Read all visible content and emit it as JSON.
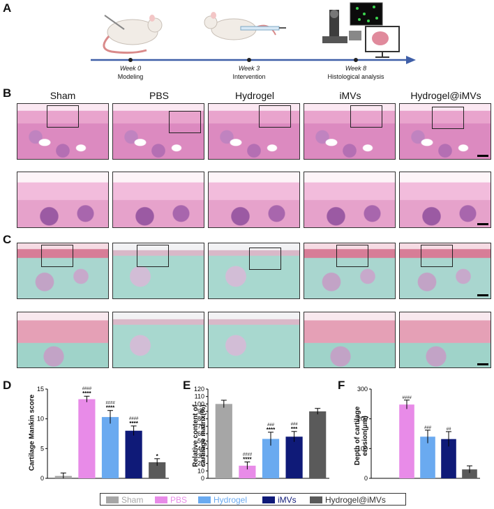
{
  "panels": {
    "a": "A",
    "b": "B",
    "c": "C",
    "d": "D",
    "e": "E",
    "f": "F"
  },
  "timeline": [
    {
      "week": "Week 0",
      "step": "Modeling"
    },
    {
      "week": "Week 3",
      "step": "Intervention"
    },
    {
      "week": "Week 8",
      "step": "Histological analysis"
    }
  ],
  "groups": [
    "Sham",
    "PBS",
    "Hydrogel",
    "iMVs",
    "Hydrogel@iMVs"
  ],
  "colors": {
    "sham": "#a6a6a6",
    "pbs": "#e88be8",
    "hydrogel": "#6aaaf0",
    "imvs": "#0f1a78",
    "hydrogel_imvs": "#5a5a5a"
  },
  "scalebars": {
    "b_top": "500 μm",
    "b_bottom": "100 μm",
    "c_top": "200 μm",
    "c_bottom": "50 μm"
  },
  "chart_data": [
    {
      "type": "bar",
      "panel": "D",
      "ylabel": "Cartilage Mankin score",
      "categories": [
        "Sham",
        "PBS",
        "Hydrogel",
        "iMVs",
        "Hydrogel@iMVs"
      ],
      "values": [
        0.4,
        13.3,
        10.3,
        8.0,
        2.7
      ],
      "errors": [
        0.5,
        0.5,
        1.1,
        0.8,
        0.6
      ],
      "annot_hash": [
        "",
        "####",
        "####",
        "####",
        ""
      ],
      "annot_star": [
        "",
        "****",
        "****",
        "****",
        "*"
      ],
      "ylim": [
        0,
        15
      ],
      "yticks": [
        0,
        5,
        10,
        15
      ]
    },
    {
      "type": "bar",
      "panel": "E",
      "ylabel": "Relative content of cartilage matrix(%)",
      "categories": [
        "Sham",
        "PBS",
        "Hydrogel",
        "iMVs",
        "Hydrogel@iMVs"
      ],
      "values": [
        100,
        17,
        53,
        56,
        90
      ],
      "errors": [
        5,
        5,
        9,
        7,
        4
      ],
      "annot_hash": [
        "",
        "####",
        "###",
        "###",
        ""
      ],
      "annot_star": [
        "",
        "****",
        "****",
        "***",
        ""
      ],
      "ylim": [
        0,
        120
      ],
      "yticks": [
        0,
        10,
        20,
        30,
        40,
        50,
        60,
        70,
        80,
        90,
        100,
        110,
        120
      ]
    },
    {
      "type": "bar",
      "panel": "F",
      "ylabel": "Depth of cartilage erosion(μm)",
      "categories": [
        "Sham",
        "PBS",
        "Hydrogel",
        "iMVs",
        "Hydrogel@iMVs"
      ],
      "values": [
        0,
        248,
        140,
        132,
        30
      ],
      "errors": [
        0,
        15,
        22,
        25,
        12
      ],
      "annot_hash": [
        "",
        "####",
        "###",
        "##",
        ""
      ],
      "annot_star": [
        "",
        "",
        "",
        "",
        ""
      ],
      "ylim": [
        0,
        300
      ],
      "yticks": [
        0,
        100,
        200,
        300
      ]
    }
  ]
}
